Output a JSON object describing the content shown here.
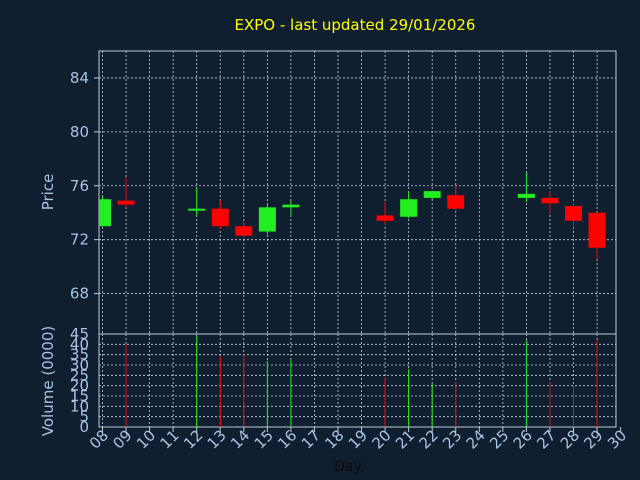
{
  "chart_data": {
    "type": "candlestick",
    "title": "EXPO - last updated 29/01/2026",
    "xlabel": "Day",
    "x_ticks": [
      "08",
      "09",
      "10",
      "11",
      "12",
      "13",
      "14",
      "15",
      "16",
      "17",
      "18",
      "19",
      "20",
      "21",
      "22",
      "23",
      "24",
      "25",
      "26",
      "27",
      "28",
      "29",
      "30"
    ],
    "price": {
      "ylabel": "Price",
      "ylim": [
        65,
        86
      ],
      "yticks": [
        "68",
        "72",
        "76",
        "80",
        "84"
      ]
    },
    "volume": {
      "ylabel": "Volume (0000)",
      "ylim": [
        0,
        45
      ],
      "yticks": [
        "0",
        "5",
        "10",
        "15",
        "20",
        "25",
        "30",
        "35",
        "40",
        "45"
      ]
    },
    "colors": {
      "up": "#22ee22",
      "down": "#ff0000"
    },
    "candles": [
      {
        "day": "08",
        "open": 73.0,
        "high": 75.2,
        "low": 73.0,
        "close": 75.0,
        "volume": 0
      },
      {
        "day": "09",
        "open": 74.9,
        "high": 76.6,
        "low": 74.4,
        "close": 74.6,
        "volume": 40
      },
      {
        "day": "12",
        "open": 74.2,
        "high": 75.8,
        "low": 73.8,
        "close": 74.3,
        "volume": 44
      },
      {
        "day": "13",
        "open": 74.3,
        "high": 74.9,
        "low": 72.8,
        "close": 73.0,
        "volume": 34
      },
      {
        "day": "14",
        "open": 73.0,
        "high": 73.3,
        "low": 72.2,
        "close": 72.3,
        "volume": 35
      },
      {
        "day": "15",
        "open": 72.6,
        "high": 74.6,
        "low": 72.4,
        "close": 74.4,
        "volume": 32
      },
      {
        "day": "16",
        "open": 74.4,
        "high": 74.9,
        "low": 73.8,
        "close": 74.6,
        "volume": 33
      },
      {
        "day": "20",
        "open": 73.8,
        "high": 74.8,
        "low": 73.1,
        "close": 73.4,
        "volume": 24
      },
      {
        "day": "21",
        "open": 73.7,
        "high": 75.6,
        "low": 73.6,
        "close": 75.0,
        "volume": 28
      },
      {
        "day": "22",
        "open": 75.1,
        "high": 75.6,
        "low": 75.0,
        "close": 75.6,
        "volume": 21
      },
      {
        "day": "23",
        "open": 75.3,
        "high": 76.0,
        "low": 74.2,
        "close": 74.3,
        "volume": 22
      },
      {
        "day": "26",
        "open": 75.1,
        "high": 77.0,
        "low": 74.8,
        "close": 75.4,
        "volume": 42
      },
      {
        "day": "27",
        "open": 75.1,
        "high": 75.6,
        "low": 73.9,
        "close": 74.7,
        "volume": 22
      },
      {
        "day": "28",
        "open": 74.5,
        "high": 74.7,
        "low": 72.9,
        "close": 73.4,
        "volume": 20
      },
      {
        "day": "29",
        "open": 74.0,
        "high": 74.0,
        "low": 70.6,
        "close": 71.4,
        "volume": 42
      }
    ]
  }
}
